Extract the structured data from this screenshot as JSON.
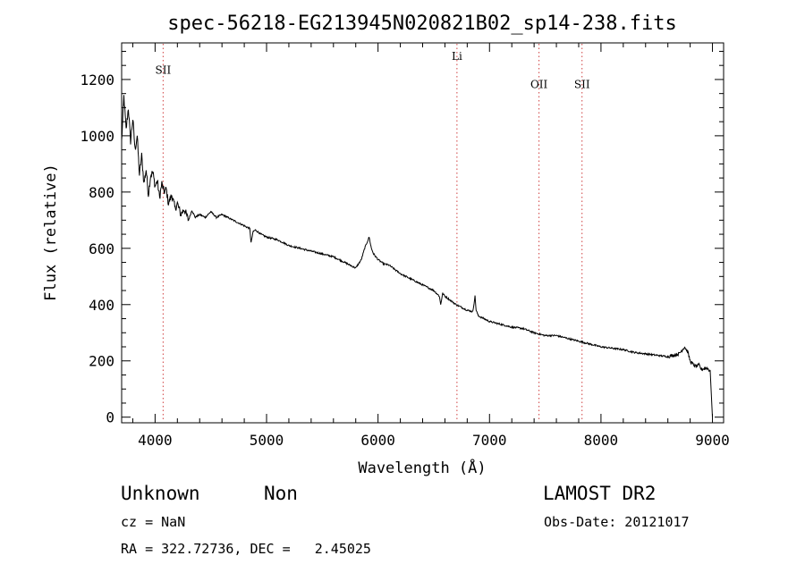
{
  "chart_data": {
    "type": "line",
    "title": "spec-56218-EG213945N020821B02_sp14-238.fits",
    "xlabel": "Wavelength (Å)",
    "ylabel": "Flux (relative)",
    "xlim": [
      3700,
      9100
    ],
    "ylim": [
      -20,
      1330
    ],
    "xticks": [
      4000,
      5000,
      6000,
      7000,
      8000,
      9000
    ],
    "yticks": [
      0,
      200,
      400,
      600,
      800,
      1000,
      1200
    ],
    "grid": false,
    "series": [
      {
        "x": [
          3700,
          3720,
          3740,
          3760,
          3780,
          3800,
          3820,
          3840,
          3860,
          3880,
          3900,
          3920,
          3940,
          3960,
          3980,
          4000,
          4020,
          4040,
          4060,
          4080,
          4100,
          4120,
          4150,
          4180,
          4200,
          4230,
          4260,
          4300,
          4330,
          4360,
          4400,
          4450,
          4500,
          4550,
          4600,
          4700,
          4800,
          4850,
          4861,
          4880,
          4900,
          4950,
          5000,
          5100,
          5200,
          5300,
          5400,
          5500,
          5600,
          5700,
          5800,
          5850,
          5880,
          5900,
          5920,
          5940,
          5960,
          5980,
          6000,
          6050,
          6100,
          6200,
          6250,
          6300,
          6350,
          6400,
          6500,
          6550,
          6562,
          6580,
          6600,
          6700,
          6800,
          6850,
          6870,
          6880,
          6900,
          7000,
          7100,
          7200,
          7300,
          7400,
          7500,
          7600,
          7700,
          7800,
          7900,
          8000,
          8100,
          8200,
          8300,
          8400,
          8500,
          8600,
          8700,
          8750,
          8780,
          8800,
          8820,
          8850,
          8880,
          8900,
          8950,
          8980,
          9000
        ],
        "y": [
          980,
          1140,
          1020,
          1100,
          980,
          1060,
          950,
          1000,
          860,
          930,
          830,
          880,
          790,
          860,
          870,
          820,
          840,
          780,
          830,
          800,
          810,
          760,
          790,
          740,
          760,
          720,
          740,
          700,
          735,
          710,
          720,
          710,
          730,
          710,
          720,
          700,
          680,
          670,
          620,
          660,
          665,
          650,
          640,
          630,
          610,
          600,
          590,
          580,
          570,
          550,
          530,
          560,
          600,
          620,
          640,
          600,
          580,
          570,
          560,
          545,
          540,
          510,
          500,
          490,
          480,
          470,
          450,
          430,
          400,
          440,
          430,
          400,
          380,
          375,
          430,
          380,
          360,
          340,
          330,
          320,
          315,
          300,
          290,
          290,
          280,
          270,
          260,
          250,
          245,
          240,
          230,
          225,
          220,
          215,
          225,
          250,
          230,
          200,
          190,
          180,
          185,
          170,
          175,
          165,
          0
        ]
      }
    ],
    "annotations": [
      {
        "label": "SII",
        "x": 4072,
        "y": 1220
      },
      {
        "label": "Li",
        "x": 6708,
        "y": 1270
      },
      {
        "label": "OII",
        "x": 7444,
        "y": 1170
      },
      {
        "label": "SII",
        "x": 7830,
        "y": 1170
      }
    ]
  },
  "info": {
    "line1_left": "Unknown",
    "line1_mid": "Non",
    "line1_right": "LAMOST DR2",
    "line2_left": "cz = NaN",
    "line2_right": "Obs-Date: 20121017",
    "line3_left": "RA = 322.72736, DEC =   2.45025"
  },
  "colors": {
    "spectrum": "#000000",
    "line_marker": "#d04040"
  }
}
